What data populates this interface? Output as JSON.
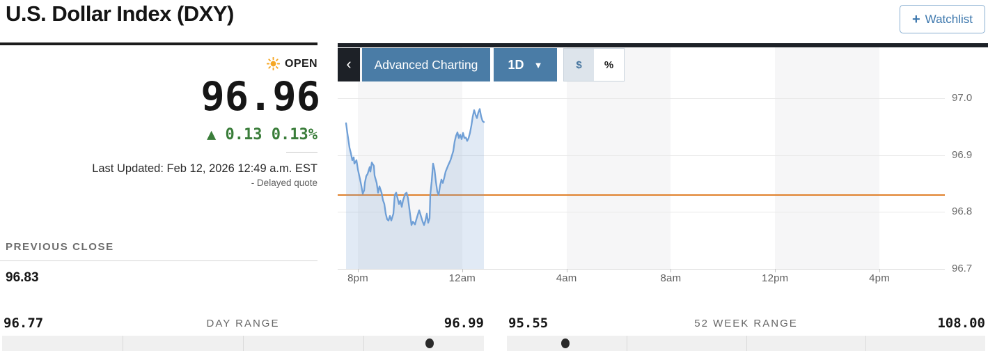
{
  "header": {
    "title": "U.S. Dollar Index (DXY)",
    "watchlist_label": "Watchlist",
    "watchlist_plus": "+"
  },
  "quote": {
    "status_label": "OPEN",
    "price": "96.96",
    "change_arrow": "▲",
    "change_value": "0.13",
    "change_percent": "0.13%",
    "last_updated": "Last Updated: Feb 12, 2026 12:49 a.m. EST",
    "delayed_note": "- Delayed quote",
    "previous_close_label": "PREVIOUS CLOSE",
    "previous_close_value": "96.83",
    "colors": {
      "up_green": "#3a7d3a",
      "status_sun": "#f5a623"
    }
  },
  "toolbar": {
    "back_icon": "‹",
    "advanced_charting_label": "Advanced Charting",
    "range_selected": "1D",
    "dropdown_caret": "▼",
    "unit_dollar": "$",
    "unit_percent": "%",
    "selected_unit": "$"
  },
  "chart_data": {
    "type": "area",
    "x_ticks": [
      "8pm",
      "12am",
      "4am",
      "8am",
      "12pm",
      "4pm"
    ],
    "y_ticks": [
      97.0,
      96.9,
      96.8,
      96.7
    ],
    "y_tick_labels": [
      "97.0",
      "96.9",
      "96.8",
      "96.7"
    ],
    "y_range": [
      96.7,
      97.0
    ],
    "previous_close": 96.83,
    "line_color": "#6f9fd6",
    "fill_color": "rgba(120,160,210,0.22)",
    "prev_close_line_color": "#e0812c",
    "band_color": "#f6f6f7",
    "points": [
      [
        12,
        96.956
      ],
      [
        14,
        96.938
      ],
      [
        17,
        96.913
      ],
      [
        19,
        96.903
      ],
      [
        21,
        96.891
      ],
      [
        23,
        96.896
      ],
      [
        24,
        96.885
      ],
      [
        27,
        96.891
      ],
      [
        29,
        96.875
      ],
      [
        32,
        96.858
      ],
      [
        34,
        96.846
      ],
      [
        36,
        96.832
      ],
      [
        38,
        96.838
      ],
      [
        39,
        96.851
      ],
      [
        41,
        96.863
      ],
      [
        43,
        96.867
      ],
      [
        46,
        96.879
      ],
      [
        47,
        96.871
      ],
      [
        49,
        96.887
      ],
      [
        52,
        96.881
      ],
      [
        53,
        96.864
      ],
      [
        56,
        96.851
      ],
      [
        58,
        96.834
      ],
      [
        60,
        96.845
      ],
      [
        63,
        96.834
      ],
      [
        65,
        96.821
      ],
      [
        67,
        96.814
      ],
      [
        69,
        96.797
      ],
      [
        71,
        96.787
      ],
      [
        73,
        96.785
      ],
      [
        75,
        96.793
      ],
      [
        77,
        96.785
      ],
      [
        80,
        96.797
      ],
      [
        82,
        96.83
      ],
      [
        84,
        96.834
      ],
      [
        86,
        96.824
      ],
      [
        88,
        96.814
      ],
      [
        90,
        96.82
      ],
      [
        92,
        96.809
      ],
      [
        94,
        96.821
      ],
      [
        97,
        96.832
      ],
      [
        99,
        96.834
      ],
      [
        101,
        96.824
      ],
      [
        103,
        96.805
      ],
      [
        106,
        96.777
      ],
      [
        108,
        96.783
      ],
      [
        111,
        96.778
      ],
      [
        113,
        96.787
      ],
      [
        116,
        96.799
      ],
      [
        117,
        96.803
      ],
      [
        119,
        96.795
      ],
      [
        122,
        96.783
      ],
      [
        124,
        96.777
      ],
      [
        126,
        96.785
      ],
      [
        128,
        96.797
      ],
      [
        130,
        96.781
      ],
      [
        132,
        96.789
      ],
      [
        133,
        96.83
      ],
      [
        135,
        96.854
      ],
      [
        137,
        96.885
      ],
      [
        139,
        96.875
      ],
      [
        141,
        96.854
      ],
      [
        143,
        96.836
      ],
      [
        145,
        96.83
      ],
      [
        147,
        96.846
      ],
      [
        149,
        96.857
      ],
      [
        151,
        96.851
      ],
      [
        153,
        96.86
      ],
      [
        155,
        96.871
      ],
      [
        157,
        96.877
      ],
      [
        159,
        96.883
      ],
      [
        162,
        96.891
      ],
      [
        164,
        96.899
      ],
      [
        166,
        96.907
      ],
      [
        168,
        96.924
      ],
      [
        170,
        96.934
      ],
      [
        172,
        96.94
      ],
      [
        174,
        96.93
      ],
      [
        176,
        96.936
      ],
      [
        178,
        96.928
      ],
      [
        180,
        96.939
      ],
      [
        182,
        96.93
      ],
      [
        184,
        96.931
      ],
      [
        186,
        96.925
      ],
      [
        188,
        96.93
      ],
      [
        190,
        96.939
      ],
      [
        192,
        96.952
      ],
      [
        194,
        96.968
      ],
      [
        196,
        96.979
      ],
      [
        198,
        96.971
      ],
      [
        200,
        96.965
      ],
      [
        202,
        96.975
      ],
      [
        204,
        96.981
      ],
      [
        206,
        96.968
      ],
      [
        208,
        96.96
      ],
      [
        210,
        96.958
      ]
    ]
  },
  "ranges": {
    "day": {
      "low": "96.77",
      "label": "DAY RANGE",
      "high": "96.99",
      "position_pct": 88.8
    },
    "week52": {
      "low": "95.55",
      "label": "52 WEEK RANGE",
      "high": "108.00",
      "position_pct": 12.2
    }
  }
}
